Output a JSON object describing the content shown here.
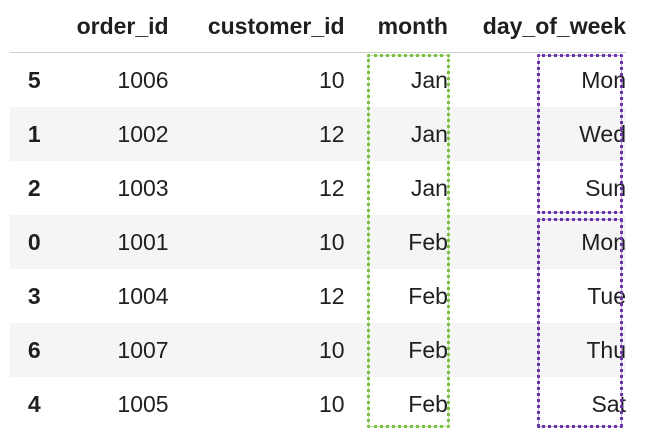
{
  "table": {
    "columns": [
      "",
      "order_id",
      "customer_id",
      "month",
      "day_of_week"
    ],
    "rows": [
      {
        "index": "5",
        "order_id": "1006",
        "customer_id": "10",
        "month": "Jan",
        "day_of_week": "Mon"
      },
      {
        "index": "1",
        "order_id": "1002",
        "customer_id": "12",
        "month": "Jan",
        "day_of_week": "Wed"
      },
      {
        "index": "2",
        "order_id": "1003",
        "customer_id": "12",
        "month": "Jan",
        "day_of_week": "Sun"
      },
      {
        "index": "0",
        "order_id": "1001",
        "customer_id": "10",
        "month": "Feb",
        "day_of_week": "Mon"
      },
      {
        "index": "3",
        "order_id": "1004",
        "customer_id": "12",
        "month": "Feb",
        "day_of_week": "Tue"
      },
      {
        "index": "6",
        "order_id": "1007",
        "customer_id": "10",
        "month": "Feb",
        "day_of_week": "Thu"
      },
      {
        "index": "4",
        "order_id": "1005",
        "customer_id": "10",
        "month": "Feb",
        "day_of_week": "Sat"
      }
    ]
  },
  "highlights": {
    "month_column_color": "#7bc143",
    "day_of_week_group_color": "#6a35a8"
  }
}
